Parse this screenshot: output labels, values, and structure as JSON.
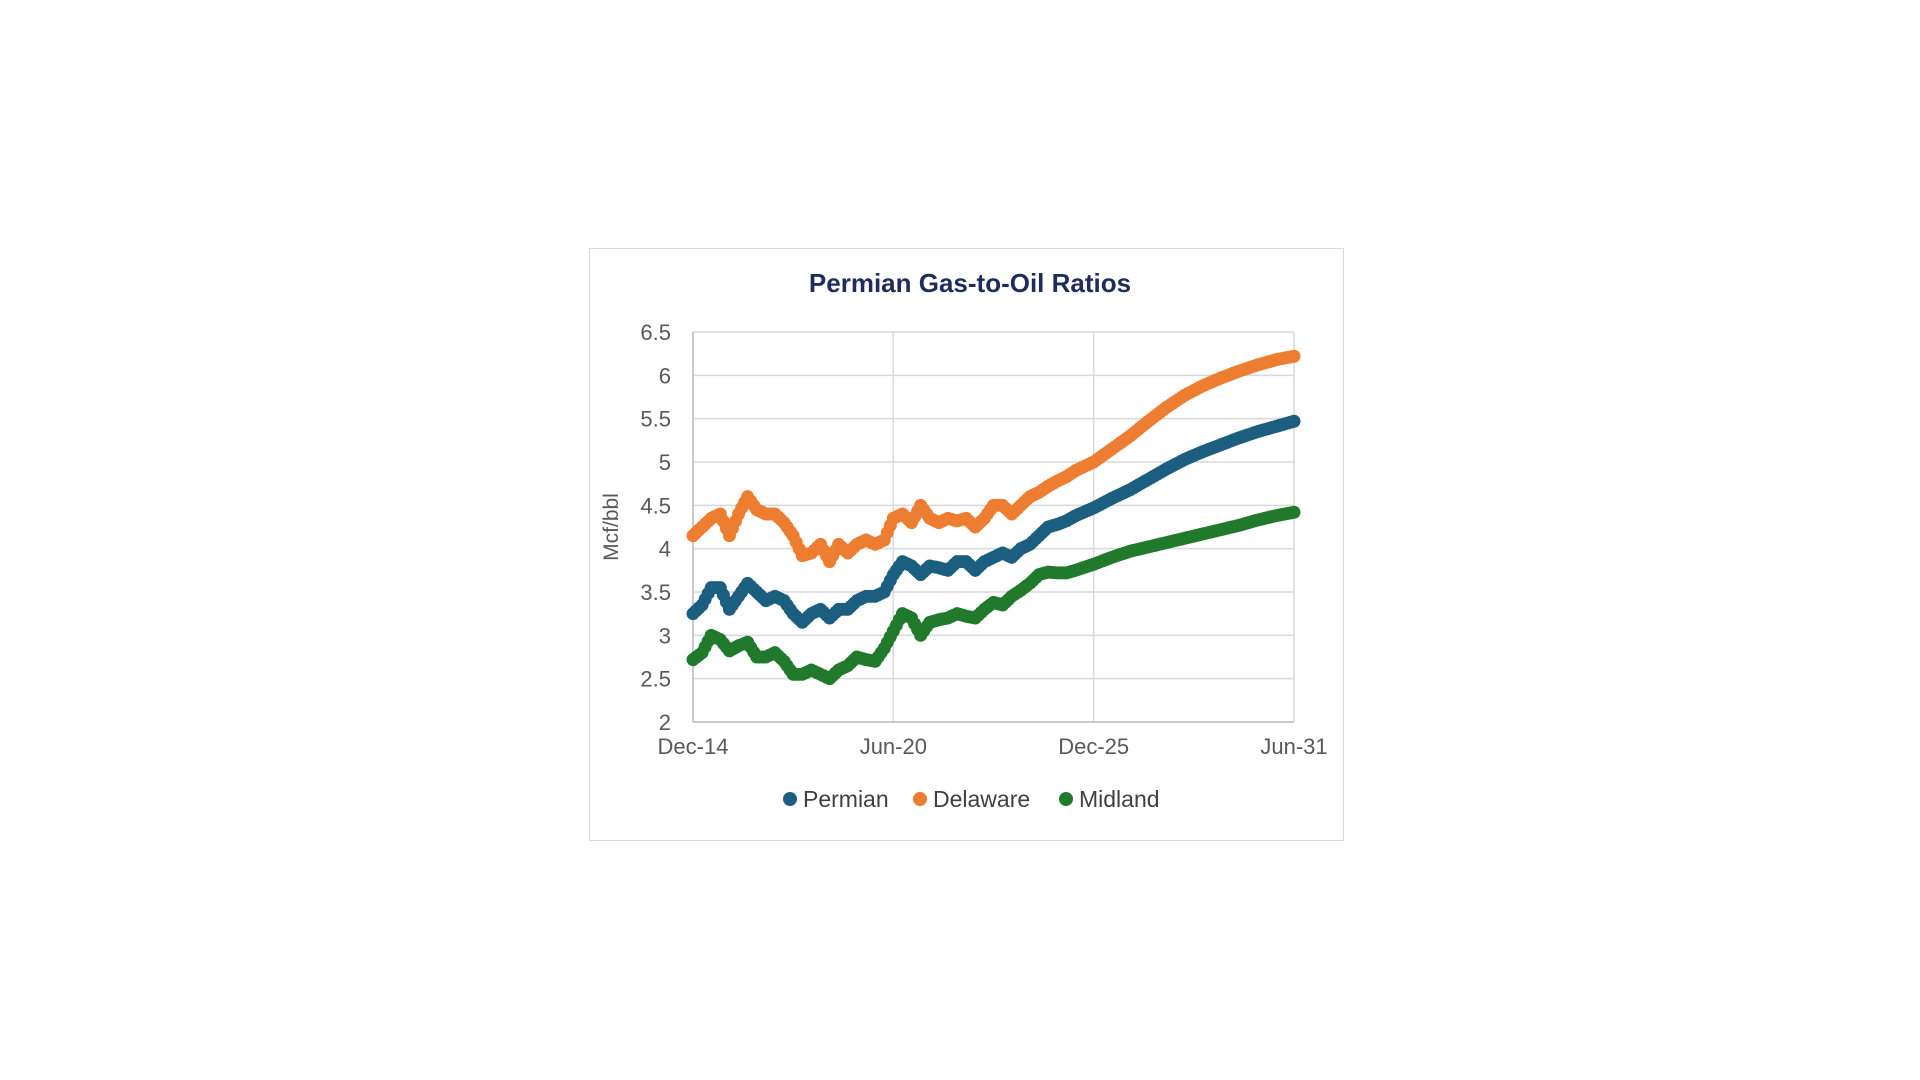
{
  "chart_data": {
    "type": "scatter",
    "title": "Permian Gas-to-Oil Ratios",
    "xlabel": "",
    "ylabel": "Mcf/bbl",
    "ylim": [
      2,
      6.5
    ],
    "yticks": [
      "2",
      "2.5",
      "3",
      "3.5",
      "4",
      "4.5",
      "5",
      "5.5",
      "6",
      "6.5"
    ],
    "xlim": [
      "2014-12",
      "2031-06"
    ],
    "xticks": [
      {
        "label": "Dec-14",
        "date": "2014-12"
      },
      {
        "label": "Jun-20",
        "date": "2020-06"
      },
      {
        "label": "Dec-25",
        "date": "2025-12"
      },
      {
        "label": "Jun-31",
        "date": "2031-06"
      }
    ],
    "grid": true,
    "legend": "bottom",
    "colors": {
      "title": "#1f2d5c",
      "Permian": "#1b5e80",
      "Delaware": "#ed7d31",
      "Midland": "#217a2b",
      "grid": "#d9d9d9"
    },
    "series": [
      {
        "name": "Permian",
        "points": [
          [
            "2014-12",
            3.25
          ],
          [
            "2015-03",
            3.35
          ],
          [
            "2015-06",
            3.55
          ],
          [
            "2015-09",
            3.55
          ],
          [
            "2015-12",
            3.3
          ],
          [
            "2016-03",
            3.45
          ],
          [
            "2016-06",
            3.6
          ],
          [
            "2016-09",
            3.5
          ],
          [
            "2016-12",
            3.4
          ],
          [
            "2017-03",
            3.45
          ],
          [
            "2017-06",
            3.4
          ],
          [
            "2017-09",
            3.25
          ],
          [
            "2017-12",
            3.15
          ],
          [
            "2018-03",
            3.25
          ],
          [
            "2018-06",
            3.3
          ],
          [
            "2018-09",
            3.2
          ],
          [
            "2018-12",
            3.3
          ],
          [
            "2019-03",
            3.3
          ],
          [
            "2019-06",
            3.4
          ],
          [
            "2019-09",
            3.45
          ],
          [
            "2019-12",
            3.45
          ],
          [
            "2020-03",
            3.5
          ],
          [
            "2020-06",
            3.7
          ],
          [
            "2020-09",
            3.85
          ],
          [
            "2020-12",
            3.8
          ],
          [
            "2021-03",
            3.7
          ],
          [
            "2021-06",
            3.8
          ],
          [
            "2021-09",
            3.78
          ],
          [
            "2021-12",
            3.75
          ],
          [
            "2022-03",
            3.85
          ],
          [
            "2022-06",
            3.85
          ],
          [
            "2022-09",
            3.75
          ],
          [
            "2022-12",
            3.85
          ],
          [
            "2023-03",
            3.9
          ],
          [
            "2023-06",
            3.95
          ],
          [
            "2023-09",
            3.9
          ],
          [
            "2023-12",
            4.0
          ],
          [
            "2024-03",
            4.05
          ],
          [
            "2024-06",
            4.15
          ],
          [
            "2024-09",
            4.25
          ],
          [
            "2024-12",
            4.28
          ],
          [
            "2025-03",
            4.32
          ],
          [
            "2025-06",
            4.38
          ],
          [
            "2025-12",
            4.47
          ],
          [
            "2026-06",
            4.58
          ],
          [
            "2026-12",
            4.68
          ],
          [
            "2027-06",
            4.8
          ],
          [
            "2027-12",
            4.92
          ],
          [
            "2028-06",
            5.03
          ],
          [
            "2028-12",
            5.12
          ],
          [
            "2029-06",
            5.2
          ],
          [
            "2029-12",
            5.28
          ],
          [
            "2030-06",
            5.35
          ],
          [
            "2030-12",
            5.41
          ],
          [
            "2031-06",
            5.47
          ]
        ]
      },
      {
        "name": "Delaware",
        "points": [
          [
            "2014-12",
            4.15
          ],
          [
            "2015-03",
            4.25
          ],
          [
            "2015-06",
            4.35
          ],
          [
            "2015-09",
            4.4
          ],
          [
            "2015-12",
            4.15
          ],
          [
            "2016-03",
            4.4
          ],
          [
            "2016-06",
            4.6
          ],
          [
            "2016-09",
            4.45
          ],
          [
            "2016-12",
            4.4
          ],
          [
            "2017-03",
            4.4
          ],
          [
            "2017-06",
            4.3
          ],
          [
            "2017-09",
            4.15
          ],
          [
            "2017-12",
            3.92
          ],
          [
            "2018-03",
            3.95
          ],
          [
            "2018-06",
            4.05
          ],
          [
            "2018-09",
            3.85
          ],
          [
            "2018-12",
            4.05
          ],
          [
            "2019-03",
            3.95
          ],
          [
            "2019-06",
            4.05
          ],
          [
            "2019-09",
            4.1
          ],
          [
            "2019-12",
            4.05
          ],
          [
            "2020-03",
            4.1
          ],
          [
            "2020-06",
            4.35
          ],
          [
            "2020-09",
            4.4
          ],
          [
            "2020-12",
            4.3
          ],
          [
            "2021-03",
            4.5
          ],
          [
            "2021-06",
            4.35
          ],
          [
            "2021-09",
            4.3
          ],
          [
            "2021-12",
            4.35
          ],
          [
            "2022-03",
            4.32
          ],
          [
            "2022-06",
            4.35
          ],
          [
            "2022-09",
            4.25
          ],
          [
            "2022-12",
            4.35
          ],
          [
            "2023-03",
            4.5
          ],
          [
            "2023-06",
            4.5
          ],
          [
            "2023-09",
            4.4
          ],
          [
            "2023-12",
            4.5
          ],
          [
            "2024-03",
            4.6
          ],
          [
            "2024-06",
            4.65
          ],
          [
            "2024-09",
            4.72
          ],
          [
            "2024-12",
            4.78
          ],
          [
            "2025-03",
            4.83
          ],
          [
            "2025-06",
            4.9
          ],
          [
            "2025-12",
            5.0
          ],
          [
            "2026-06",
            5.15
          ],
          [
            "2026-12",
            5.3
          ],
          [
            "2027-06",
            5.47
          ],
          [
            "2027-12",
            5.63
          ],
          [
            "2028-06",
            5.77
          ],
          [
            "2028-12",
            5.88
          ],
          [
            "2029-06",
            5.97
          ],
          [
            "2029-12",
            6.05
          ],
          [
            "2030-06",
            6.12
          ],
          [
            "2030-12",
            6.18
          ],
          [
            "2031-06",
            6.22
          ]
        ]
      },
      {
        "name": "Midland",
        "points": [
          [
            "2014-12",
            2.72
          ],
          [
            "2015-03",
            2.8
          ],
          [
            "2015-06",
            3.0
          ],
          [
            "2015-09",
            2.95
          ],
          [
            "2015-12",
            2.82
          ],
          [
            "2016-03",
            2.88
          ],
          [
            "2016-06",
            2.92
          ],
          [
            "2016-09",
            2.75
          ],
          [
            "2016-12",
            2.75
          ],
          [
            "2017-03",
            2.8
          ],
          [
            "2017-06",
            2.7
          ],
          [
            "2017-09",
            2.55
          ],
          [
            "2017-12",
            2.55
          ],
          [
            "2018-03",
            2.6
          ],
          [
            "2018-06",
            2.55
          ],
          [
            "2018-09",
            2.5
          ],
          [
            "2018-12",
            2.6
          ],
          [
            "2019-03",
            2.65
          ],
          [
            "2019-06",
            2.75
          ],
          [
            "2019-09",
            2.72
          ],
          [
            "2019-12",
            2.7
          ],
          [
            "2020-03",
            2.85
          ],
          [
            "2020-06",
            3.05
          ],
          [
            "2020-09",
            3.25
          ],
          [
            "2020-12",
            3.2
          ],
          [
            "2021-03",
            3.0
          ],
          [
            "2021-06",
            3.15
          ],
          [
            "2021-09",
            3.18
          ],
          [
            "2021-12",
            3.2
          ],
          [
            "2022-03",
            3.25
          ],
          [
            "2022-06",
            3.22
          ],
          [
            "2022-09",
            3.2
          ],
          [
            "2022-12",
            3.3
          ],
          [
            "2023-03",
            3.38
          ],
          [
            "2023-06",
            3.35
          ],
          [
            "2023-09",
            3.45
          ],
          [
            "2023-12",
            3.52
          ],
          [
            "2024-03",
            3.6
          ],
          [
            "2024-06",
            3.7
          ],
          [
            "2024-09",
            3.73
          ],
          [
            "2024-12",
            3.72
          ],
          [
            "2025-03",
            3.72
          ],
          [
            "2025-06",
            3.75
          ],
          [
            "2025-12",
            3.82
          ],
          [
            "2026-06",
            3.9
          ],
          [
            "2026-12",
            3.97
          ],
          [
            "2027-06",
            4.02
          ],
          [
            "2027-12",
            4.07
          ],
          [
            "2028-06",
            4.12
          ],
          [
            "2028-12",
            4.17
          ],
          [
            "2029-06",
            4.22
          ],
          [
            "2029-12",
            4.27
          ],
          [
            "2030-06",
            4.33
          ],
          [
            "2030-12",
            4.38
          ],
          [
            "2031-06",
            4.42
          ]
        ]
      }
    ]
  }
}
